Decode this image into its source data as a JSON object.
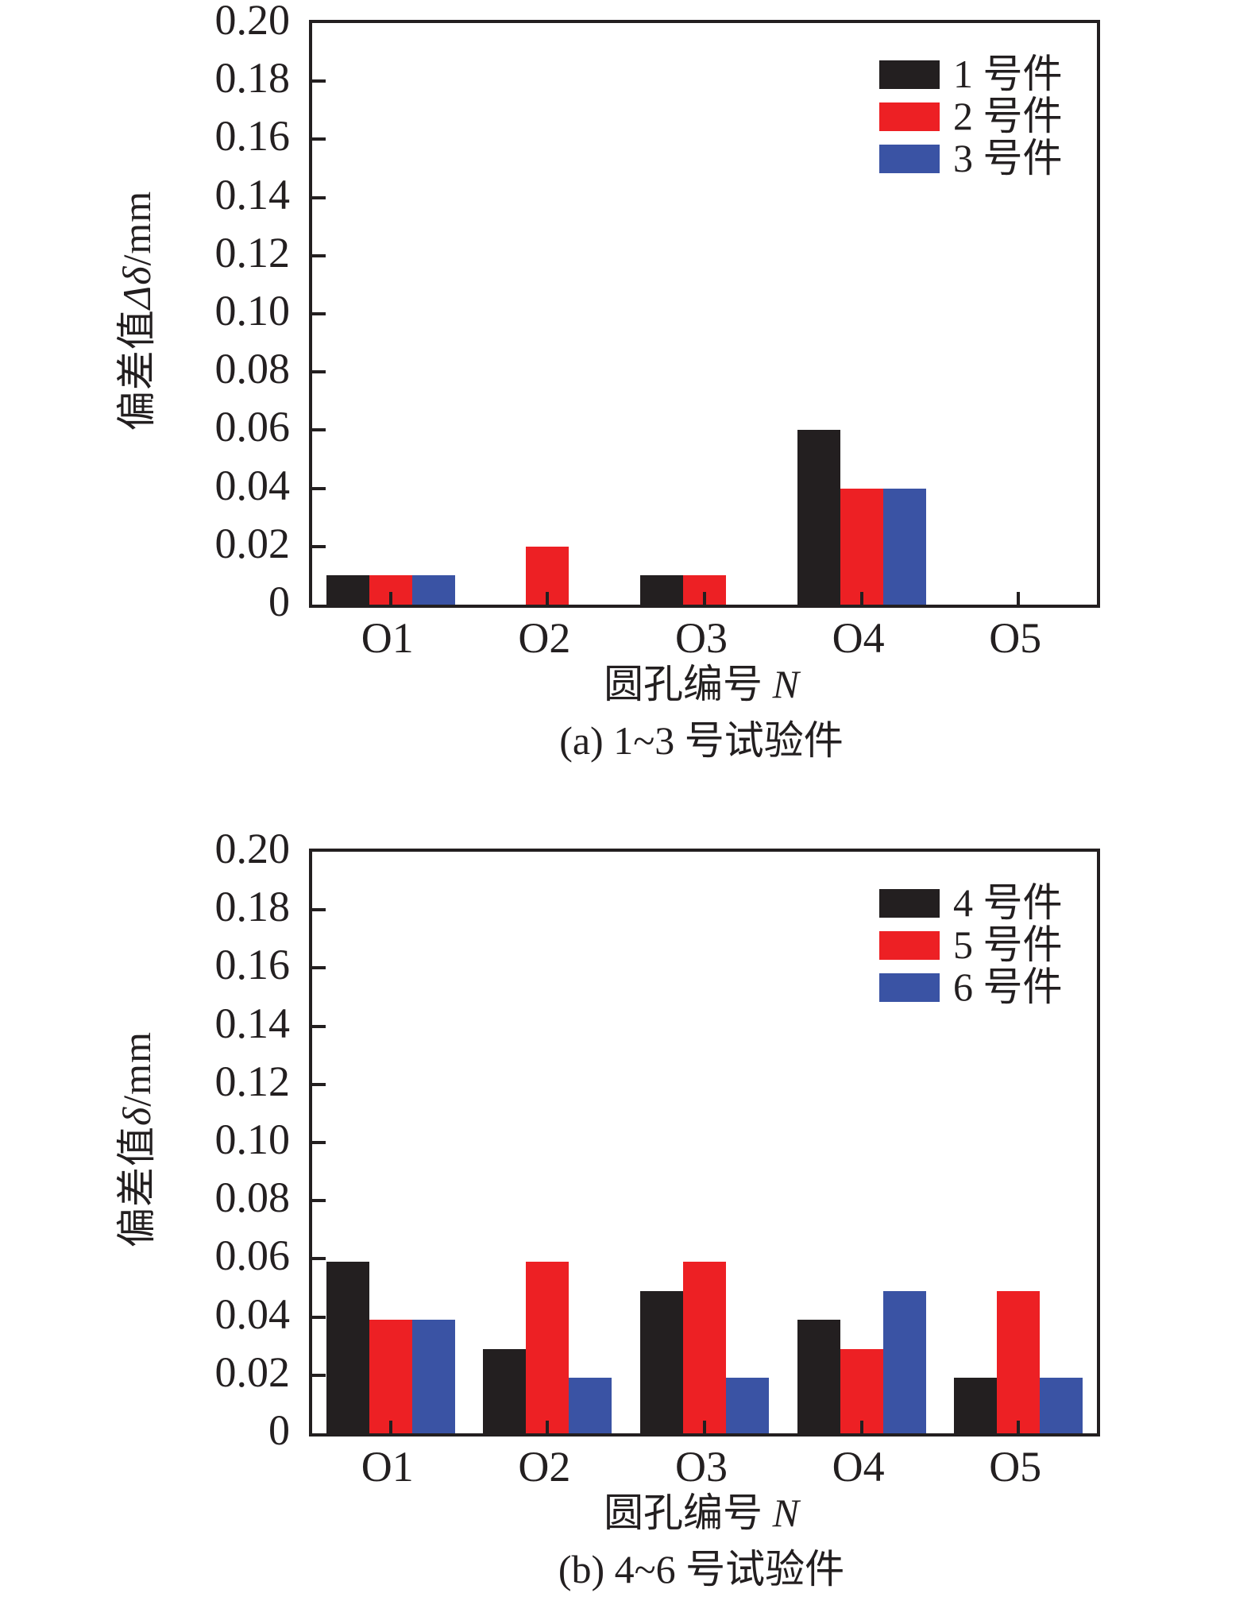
{
  "figure": {
    "background": "#ffffff",
    "text_color": "#231F20"
  },
  "colors": {
    "axis": "#231F20",
    "series_black": "#231F20",
    "series_red": "#ED2024",
    "series_blue": "#3A53A4"
  },
  "chart_data": [
    {
      "type": "bar",
      "caption": "(a) 1~3 号试验件",
      "ylabel_prefix": "偏差值",
      "ylabel_symbol": "Δδ",
      "ylabel_suffix": "/mm",
      "xlabel_prefix": "圆孔编号 ",
      "xlabel_symbol": "N",
      "ylim": [
        0,
        0.2
      ],
      "grid": false,
      "legend_position": "top-right",
      "y_ticks": [
        "0",
        "0.02",
        "0.04",
        "0.06",
        "0.08",
        "0.10",
        "0.12",
        "0.14",
        "0.16",
        "0.18",
        "0.20"
      ],
      "categories": [
        "O1",
        "O2",
        "O3",
        "O4",
        "O5"
      ],
      "series": [
        {
          "name": "1 号件",
          "color": "#231F20",
          "values": [
            0.01,
            0,
            0.01,
            0.06,
            0
          ]
        },
        {
          "name": "2 号件",
          "color": "#ED2024",
          "values": [
            0.01,
            0.02,
            0.01,
            0.04,
            0
          ]
        },
        {
          "name": "3 号件",
          "color": "#3A53A4",
          "values": [
            0.01,
            0,
            0,
            0.04,
            0
          ]
        }
      ]
    },
    {
      "type": "bar",
      "caption": "(b) 4~6 号试验件",
      "ylabel_prefix": "偏差值",
      "ylabel_symbol": "δ",
      "ylabel_suffix": "/mm",
      "xlabel_prefix": "圆孔编号 ",
      "xlabel_symbol": "N",
      "ylim": [
        0,
        0.2
      ],
      "grid": false,
      "legend_position": "top-right",
      "y_ticks": [
        "0",
        "0.02",
        "0.04",
        "0.06",
        "0.08",
        "0.10",
        "0.12",
        "0.14",
        "0.16",
        "0.18",
        "0.20"
      ],
      "categories": [
        "O1",
        "O2",
        "O3",
        "O4",
        "O5"
      ],
      "series": [
        {
          "name": "4 号件",
          "color": "#231F20",
          "values": [
            0.059,
            0.029,
            0.049,
            0.039,
            0.019
          ]
        },
        {
          "name": "5 号件",
          "color": "#ED2024",
          "values": [
            0.039,
            0.059,
            0.059,
            0.029,
            0.049
          ]
        },
        {
          "name": "6 号件",
          "color": "#3A53A4",
          "values": [
            0.039,
            0.019,
            0.019,
            0.049,
            0.019
          ]
        }
      ]
    }
  ]
}
